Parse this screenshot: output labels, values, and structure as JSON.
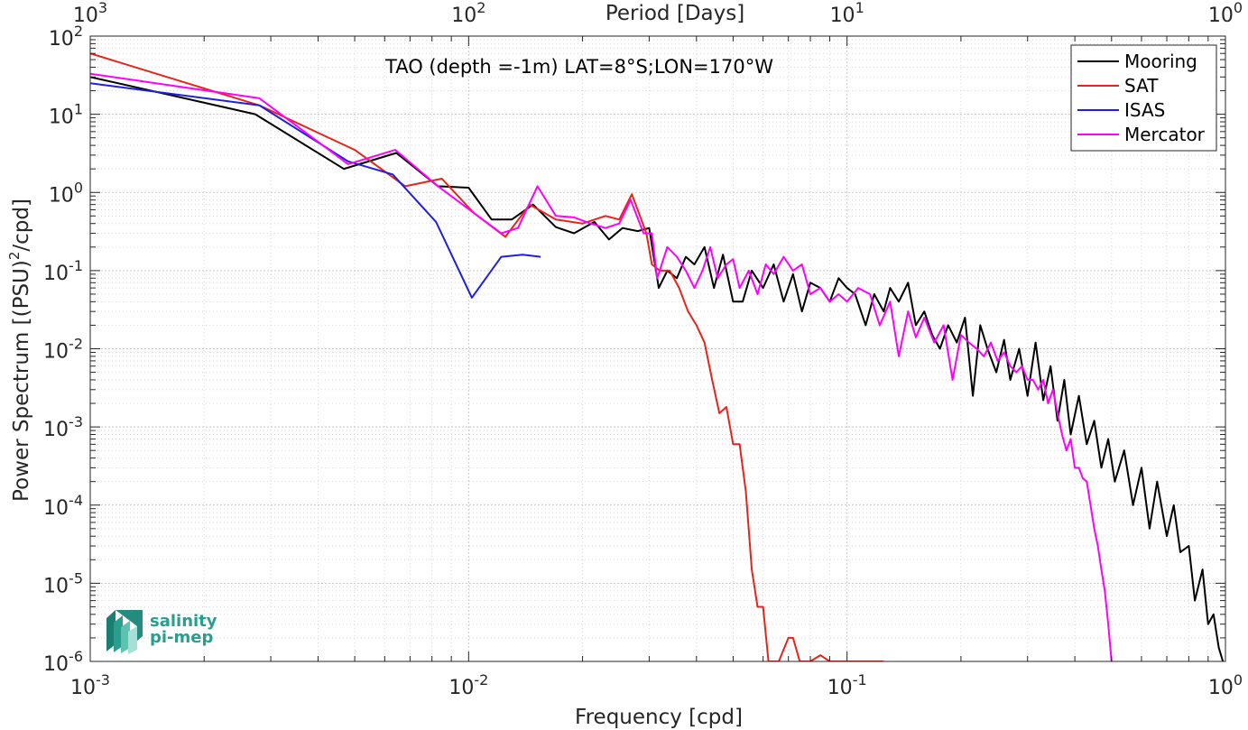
{
  "chart_data": {
    "type": "line",
    "title": "TAO (depth =-1m) LAT=8°S;LON=170°W",
    "xlabel": "Frequency [cpd]",
    "ylabel": "Power Spectrum [(PSU)",
    "ylabel_sup": "2",
    "ylabel_tail": "/cpd]",
    "top_xlabel": "Period [Days]",
    "xscale": "log",
    "yscale": "log",
    "xlim": [
      0.001,
      1
    ],
    "ylim": [
      1e-06,
      100
    ],
    "grid": true,
    "legend_position": "top-right",
    "x_ticks": [
      {
        "base": "10",
        "exp": "-3",
        "value": 0.001
      },
      {
        "base": "10",
        "exp": "-2",
        "value": 0.01
      },
      {
        "base": "10",
        "exp": "-1",
        "value": 0.1
      },
      {
        "base": "10",
        "exp": "0",
        "value": 1
      }
    ],
    "top_ticks": [
      {
        "base": "10",
        "exp": "3",
        "value": 0.001
      },
      {
        "base": "10",
        "exp": "2",
        "value": 0.01
      },
      {
        "base": "10",
        "exp": "1",
        "value": 0.1
      },
      {
        "base": "10",
        "exp": "0",
        "value": 1
      }
    ],
    "y_ticks": [
      {
        "base": "10",
        "exp": "2",
        "value": 100
      },
      {
        "base": "10",
        "exp": "1",
        "value": 10
      },
      {
        "base": "10",
        "exp": "0",
        "value": 1
      },
      {
        "base": "10",
        "exp": "-1",
        "value": 0.1
      },
      {
        "base": "10",
        "exp": "-2",
        "value": 0.01
      },
      {
        "base": "10",
        "exp": "-3",
        "value": 0.001
      },
      {
        "base": "10",
        "exp": "-4",
        "value": 0.0001
      },
      {
        "base": "10",
        "exp": "-5",
        "value": 1e-05
      },
      {
        "base": "10",
        "exp": "-6",
        "value": 1e-06
      }
    ],
    "series": [
      {
        "name": "Mooring",
        "color": "#000000",
        "points": [
          [
            0.001,
            30
          ],
          [
            0.00273,
            10
          ],
          [
            0.00468,
            2
          ],
          [
            0.00644,
            3.2
          ],
          [
            0.00829,
            1.2
          ],
          [
            0.01,
            1.15
          ],
          [
            0.0115,
            0.45
          ],
          [
            0.013,
            0.45
          ],
          [
            0.0148,
            0.7
          ],
          [
            0.017,
            0.36
          ],
          [
            0.019,
            0.3
          ],
          [
            0.0215,
            0.42
          ],
          [
            0.0235,
            0.25
          ],
          [
            0.0255,
            0.35
          ],
          [
            0.028,
            0.32
          ],
          [
            0.03,
            0.35
          ],
          [
            0.0318,
            0.06
          ],
          [
            0.0335,
            0.1
          ],
          [
            0.0355,
            0.08
          ],
          [
            0.0375,
            0.15
          ],
          [
            0.0395,
            0.12
          ],
          [
            0.042,
            0.2
          ],
          [
            0.0445,
            0.06
          ],
          [
            0.047,
            0.16
          ],
          [
            0.05,
            0.04
          ],
          [
            0.053,
            0.04
          ],
          [
            0.056,
            0.1
          ],
          [
            0.06,
            0.06
          ],
          [
            0.064,
            0.12
          ],
          [
            0.068,
            0.04
          ],
          [
            0.072,
            0.09
          ],
          [
            0.076,
            0.03
          ],
          [
            0.08,
            0.07
          ],
          [
            0.085,
            0.06
          ],
          [
            0.09,
            0.04
          ],
          [
            0.095,
            0.08
          ],
          [
            0.1,
            0.06
          ],
          [
            0.105,
            0.05
          ],
          [
            0.112,
            0.02
          ],
          [
            0.118,
            0.05
          ],
          [
            0.125,
            0.03
          ],
          [
            0.13,
            0.06
          ],
          [
            0.137,
            0.04
          ],
          [
            0.145,
            0.07
          ],
          [
            0.152,
            0.02
          ],
          [
            0.16,
            0.03
          ],
          [
            0.168,
            0.015
          ],
          [
            0.176,
            0.01
          ],
          [
            0.185,
            0.02
          ],
          [
            0.195,
            0.012
          ],
          [
            0.205,
            0.025
          ],
          [
            0.215,
            0.0025
          ],
          [
            0.225,
            0.02
          ],
          [
            0.235,
            0.01
          ],
          [
            0.248,
            0.005
          ],
          [
            0.26,
            0.013
          ],
          [
            0.27,
            0.004
          ],
          [
            0.285,
            0.01
          ],
          [
            0.3,
            0.0025
          ],
          [
            0.315,
            0.012
          ],
          [
            0.33,
            0.0022
          ],
          [
            0.345,
            0.006
          ],
          [
            0.36,
            0.0012
          ],
          [
            0.375,
            0.004
          ],
          [
            0.39,
            0.0008
          ],
          [
            0.41,
            0.0025
          ],
          [
            0.43,
            0.0006
          ],
          [
            0.45,
            0.0012
          ],
          [
            0.47,
            0.0003
          ],
          [
            0.49,
            0.0007
          ],
          [
            0.51,
            0.0002
          ],
          [
            0.54,
            0.0005
          ],
          [
            0.57,
            0.0001
          ],
          [
            0.6,
            0.0003
          ],
          [
            0.63,
            5e-05
          ],
          [
            0.66,
            0.0002
          ],
          [
            0.7,
            4e-05
          ],
          [
            0.73,
            0.0001
          ],
          [
            0.76,
            2.5e-05
          ],
          [
            0.8,
            3e-05
          ],
          [
            0.83,
            6e-06
          ],
          [
            0.87,
            1.5e-05
          ],
          [
            0.9,
            3e-06
          ],
          [
            0.93,
            4e-06
          ],
          [
            0.96,
            1.5e-06
          ],
          [
            0.985,
            1e-06
          ]
        ]
      },
      {
        "name": "SAT",
        "color": "#e8231a",
        "points": [
          [
            0.001,
            60
          ],
          [
            0.0028,
            13
          ],
          [
            0.005,
            3.5
          ],
          [
            0.0068,
            1.2
          ],
          [
            0.0085,
            1.5
          ],
          [
            0.0103,
            0.55
          ],
          [
            0.0125,
            0.27
          ],
          [
            0.0145,
            0.7
          ],
          [
            0.017,
            0.45
          ],
          [
            0.02,
            0.4
          ],
          [
            0.023,
            0.5
          ],
          [
            0.025,
            0.45
          ],
          [
            0.027,
            0.95
          ],
          [
            0.0295,
            0.3
          ],
          [
            0.0305,
            0.12
          ],
          [
            0.032,
            0.1
          ],
          [
            0.034,
            0.1
          ],
          [
            0.036,
            0.06
          ],
          [
            0.038,
            0.03
          ],
          [
            0.04,
            0.02
          ],
          [
            0.042,
            0.012
          ],
          [
            0.044,
            0.004
          ],
          [
            0.046,
            0.0015
          ],
          [
            0.048,
            0.0018
          ],
          [
            0.05,
            0.0006
          ],
          [
            0.052,
            0.0006
          ],
          [
            0.054,
            0.00015
          ],
          [
            0.056,
            1.5e-05
          ],
          [
            0.058,
            5e-06
          ],
          [
            0.06,
            5e-06
          ],
          [
            0.062,
            1e-06
          ],
          [
            0.066,
            1e-06
          ],
          [
            0.07,
            2e-06
          ],
          [
            0.072,
            2e-06
          ],
          [
            0.075,
            1e-06
          ],
          [
            0.08,
            1e-06
          ],
          [
            0.085,
            1.2e-06
          ],
          [
            0.09,
            1e-06
          ],
          [
            0.095,
            1e-06
          ],
          [
            0.1,
            1e-06
          ],
          [
            0.11,
            1e-06
          ],
          [
            0.12,
            1e-06
          ],
          [
            0.125,
            1e-06
          ]
        ]
      },
      {
        "name": "ISAS",
        "color": "#1f1fe0",
        "points": [
          [
            0.001,
            25
          ],
          [
            0.0028,
            13
          ],
          [
            0.0048,
            2.5
          ],
          [
            0.0063,
            1.7
          ],
          [
            0.0082,
            0.42
          ],
          [
            0.0102,
            0.045
          ],
          [
            0.0122,
            0.15
          ],
          [
            0.0139,
            0.16
          ],
          [
            0.0155,
            0.15
          ]
        ]
      },
      {
        "name": "Mercator",
        "color": "#ff00ff",
        "points": [
          [
            0.001,
            33
          ],
          [
            0.0028,
            16
          ],
          [
            0.0048,
            2.3
          ],
          [
            0.0064,
            3.5
          ],
          [
            0.0083,
            1.2
          ],
          [
            0.0103,
            0.55
          ],
          [
            0.0122,
            0.3
          ],
          [
            0.0135,
            0.35
          ],
          [
            0.0152,
            1.2
          ],
          [
            0.017,
            0.5
          ],
          [
            0.019,
            0.48
          ],
          [
            0.021,
            0.4
          ],
          [
            0.023,
            0.35
          ],
          [
            0.025,
            0.4
          ],
          [
            0.0268,
            0.8
          ],
          [
            0.029,
            0.3
          ],
          [
            0.0305,
            0.3
          ],
          [
            0.0315,
            0.08
          ],
          [
            0.0335,
            0.2
          ],
          [
            0.0355,
            0.15
          ],
          [
            0.0375,
            0.1
          ],
          [
            0.0395,
            0.06
          ],
          [
            0.0415,
            0.1
          ],
          [
            0.0435,
            0.2
          ],
          [
            0.0455,
            0.08
          ],
          [
            0.048,
            0.12
          ],
          [
            0.05,
            0.14
          ],
          [
            0.052,
            0.06
          ],
          [
            0.055,
            0.1
          ],
          [
            0.058,
            0.05
          ],
          [
            0.061,
            0.12
          ],
          [
            0.064,
            0.09
          ],
          [
            0.068,
            0.15
          ],
          [
            0.072,
            0.1
          ],
          [
            0.076,
            0.12
          ],
          [
            0.08,
            0.05
          ],
          [
            0.085,
            0.06
          ],
          [
            0.09,
            0.04
          ],
          [
            0.095,
            0.05
          ],
          [
            0.1,
            0.04
          ],
          [
            0.107,
            0.06
          ],
          [
            0.115,
            0.05
          ],
          [
            0.122,
            0.02
          ],
          [
            0.13,
            0.04
          ],
          [
            0.137,
            0.008
          ],
          [
            0.145,
            0.03
          ],
          [
            0.152,
            0.014
          ],
          [
            0.16,
            0.025
          ],
          [
            0.17,
            0.012
          ],
          [
            0.18,
            0.02
          ],
          [
            0.19,
            0.004
          ],
          [
            0.2,
            0.015
          ],
          [
            0.21,
            0.012
          ],
          [
            0.22,
            0.01
          ],
          [
            0.23,
            0.008
          ],
          [
            0.24,
            0.012
          ],
          [
            0.25,
            0.007
          ],
          [
            0.26,
            0.009
          ],
          [
            0.27,
            0.006
          ],
          [
            0.28,
            0.005
          ],
          [
            0.29,
            0.006
          ],
          [
            0.3,
            0.004
          ],
          [
            0.31,
            0.004
          ],
          [
            0.32,
            0.003
          ],
          [
            0.33,
            0.004
          ],
          [
            0.34,
            0.002
          ],
          [
            0.35,
            0.003
          ],
          [
            0.36,
            0.0015
          ],
          [
            0.37,
            0.0008
          ],
          [
            0.38,
            0.0005
          ],
          [
            0.39,
            0.0007
          ],
          [
            0.4,
            0.0003
          ],
          [
            0.41,
            0.0003
          ],
          [
            0.42,
            0.00022
          ],
          [
            0.43,
            0.0002
          ],
          [
            0.44,
            0.0001
          ],
          [
            0.45,
            5e-05
          ],
          [
            0.46,
            3e-05
          ],
          [
            0.47,
            1.5e-05
          ],
          [
            0.48,
            8e-06
          ],
          [
            0.49,
            3e-06
          ],
          [
            0.5,
            1e-06
          ]
        ]
      }
    ]
  },
  "logo": {
    "line1": "salinity",
    "line2": "pi-mep",
    "color": "#2a9d8f"
  }
}
